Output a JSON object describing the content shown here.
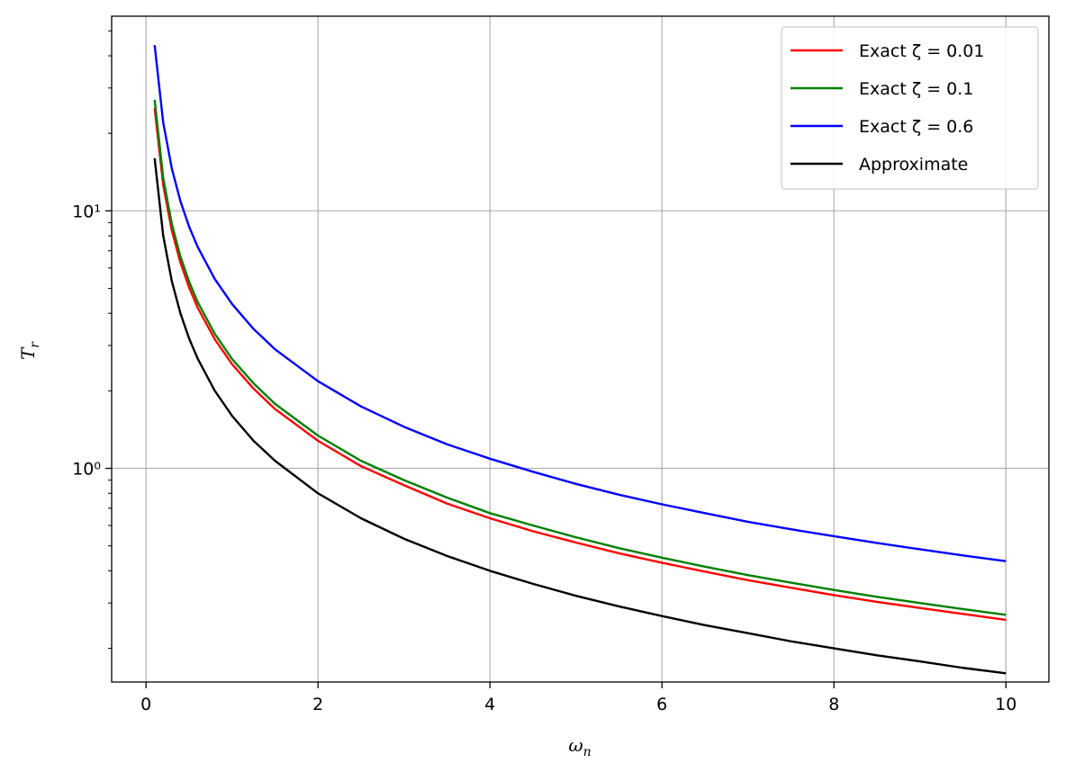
{
  "chart_data": {
    "type": "line",
    "title": "",
    "xlabel": "ω_n",
    "ylabel": "T_r",
    "xscale": "linear",
    "yscale": "log",
    "xlim": [
      -0.4,
      10.5
    ],
    "ylim": [
      0.148,
      57
    ],
    "xticks": [
      0,
      2,
      4,
      6,
      8,
      10
    ],
    "xtick_labels": [
      "0",
      "2",
      "4",
      "6",
      "8",
      "10"
    ],
    "yticks": [
      1,
      10
    ],
    "ytick_labels": [
      "10⁰",
      "10¹"
    ],
    "grid": true,
    "legend_position": "upper right",
    "series": [
      {
        "name": "Exact ζ = 0.01",
        "color": "#ff0000",
        "x": [
          0.1,
          0.2,
          0.3,
          0.4,
          0.5,
          0.6,
          0.8,
          1.0,
          1.25,
          1.5,
          2,
          2.5,
          3,
          3.5,
          4,
          4.5,
          5,
          5.5,
          6,
          6.5,
          7,
          7.5,
          8,
          8.5,
          9,
          9.5,
          10
        ],
        "y": [
          25.1,
          12.6,
          8.39,
          6.3,
          5.05,
          4.21,
          3.17,
          2.54,
          2.04,
          1.7,
          1.28,
          1.02,
          0.86,
          0.73,
          0.64,
          0.57,
          0.515,
          0.468,
          0.43,
          0.397,
          0.368,
          0.344,
          0.322,
          0.303,
          0.287,
          0.272,
          0.258
        ]
      },
      {
        "name": "Exact ζ = 0.1",
        "color": "#008000",
        "x": [
          0.1,
          0.2,
          0.3,
          0.4,
          0.5,
          0.6,
          0.8,
          1.0,
          1.25,
          1.5,
          2,
          2.5,
          3,
          3.5,
          4,
          4.5,
          5,
          5.5,
          6,
          6.5,
          7,
          7.5,
          8,
          8.5,
          9,
          9.5,
          10
        ],
        "y": [
          27.0,
          13.4,
          8.9,
          6.65,
          5.32,
          4.43,
          3.33,
          2.66,
          2.14,
          1.78,
          1.34,
          1.07,
          0.9,
          0.77,
          0.67,
          0.6,
          0.54,
          0.49,
          0.45,
          0.415,
          0.385,
          0.36,
          0.337,
          0.317,
          0.3,
          0.284,
          0.27
        ]
      },
      {
        "name": "Exact ζ = 0.6",
        "color": "#0000ff",
        "x": [
          0.1,
          0.2,
          0.3,
          0.4,
          0.5,
          0.6,
          0.8,
          1.0,
          1.25,
          1.5,
          2,
          2.5,
          3,
          3.5,
          4,
          4.5,
          5,
          5.5,
          6,
          6.5,
          7,
          7.5,
          8,
          8.5,
          9,
          9.5,
          10
        ],
        "y": [
          44.0,
          22.0,
          14.6,
          10.9,
          8.7,
          7.25,
          5.43,
          4.35,
          3.48,
          2.9,
          2.18,
          1.74,
          1.45,
          1.24,
          1.09,
          0.97,
          0.87,
          0.79,
          0.725,
          0.67,
          0.62,
          0.58,
          0.545,
          0.513,
          0.485,
          0.459,
          0.436
        ]
      },
      {
        "name": "Approximate",
        "color": "#000000",
        "x": [
          0.1,
          0.2,
          0.3,
          0.4,
          0.5,
          0.6,
          0.8,
          1.0,
          1.25,
          1.5,
          2,
          2.5,
          3,
          3.5,
          4,
          4.5,
          5,
          5.5,
          6,
          6.5,
          7,
          7.5,
          8,
          8.5,
          9,
          9.5,
          10
        ],
        "y": [
          16.0,
          8.0,
          5.33,
          4.0,
          3.2,
          2.67,
          2.0,
          1.6,
          1.28,
          1.07,
          0.8,
          0.64,
          0.533,
          0.457,
          0.4,
          0.356,
          0.32,
          0.291,
          0.267,
          0.246,
          0.229,
          0.213,
          0.2,
          0.188,
          0.178,
          0.168,
          0.16
        ]
      }
    ]
  }
}
